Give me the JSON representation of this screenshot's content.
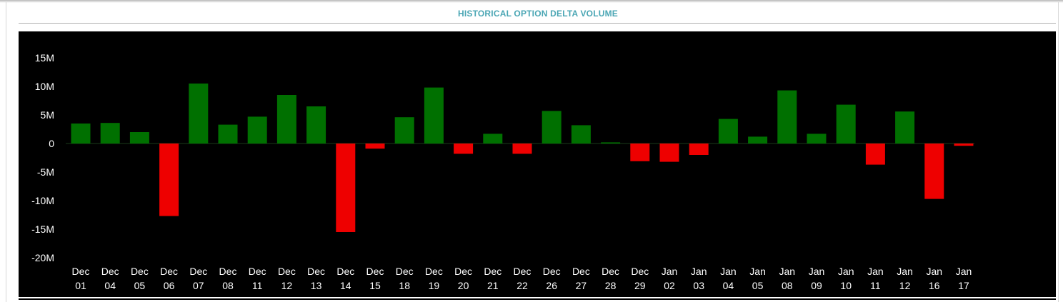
{
  "panel": {
    "title": "HISTORICAL OPTION DELTA VOLUME"
  },
  "colors": {
    "background": "#000000",
    "positive": "#007000",
    "negative": "#ee0000",
    "axis_text": "#ffffff",
    "title": "#4aa6b4"
  },
  "chart_data": {
    "type": "bar",
    "title": "HISTORICAL OPTION DELTA VOLUME",
    "xlabel": "",
    "ylabel": "",
    "ylim": [
      -20000000,
      15000000
    ],
    "y_ticks": [
      {
        "value": 15000000,
        "label": "15M"
      },
      {
        "value": 10000000,
        "label": "10M"
      },
      {
        "value": 5000000,
        "label": "5M"
      },
      {
        "value": 0,
        "label": "0"
      },
      {
        "value": -5000000,
        "label": "-5M"
      },
      {
        "value": -10000000,
        "label": "-10M"
      },
      {
        "value": -15000000,
        "label": "-15M"
      },
      {
        "value": -20000000,
        "label": "-20M"
      }
    ],
    "grid": false,
    "legend": "none",
    "categories": [
      [
        "Dec",
        "01"
      ],
      [
        "Dec",
        "04"
      ],
      [
        "Dec",
        "05"
      ],
      [
        "Dec",
        "06"
      ],
      [
        "Dec",
        "07"
      ],
      [
        "Dec",
        "08"
      ],
      [
        "Dec",
        "11"
      ],
      [
        "Dec",
        "12"
      ],
      [
        "Dec",
        "13"
      ],
      [
        "Dec",
        "14"
      ],
      [
        "Dec",
        "15"
      ],
      [
        "Dec",
        "18"
      ],
      [
        "Dec",
        "19"
      ],
      [
        "Dec",
        "20"
      ],
      [
        "Dec",
        "21"
      ],
      [
        "Dec",
        "22"
      ],
      [
        "Dec",
        "26"
      ],
      [
        "Dec",
        "27"
      ],
      [
        "Dec",
        "28"
      ],
      [
        "Dec",
        "29"
      ],
      [
        "Jan",
        "02"
      ],
      [
        "Jan",
        "03"
      ],
      [
        "Jan",
        "04"
      ],
      [
        "Jan",
        "05"
      ],
      [
        "Jan",
        "08"
      ],
      [
        "Jan",
        "09"
      ],
      [
        "Jan",
        "10"
      ],
      [
        "Jan",
        "11"
      ],
      [
        "Jan",
        "12"
      ],
      [
        "Jan",
        "16"
      ],
      [
        "Jan",
        "17"
      ]
    ],
    "values": [
      3500000,
      3600000,
      2000000,
      -12700000,
      10500000,
      3300000,
      4700000,
      8500000,
      6500000,
      -15500000,
      -900000,
      4600000,
      9800000,
      -1800000,
      1700000,
      -1800000,
      5700000,
      3200000,
      200000,
      -3100000,
      -3200000,
      -2000000,
      4300000,
      1200000,
      9300000,
      1700000,
      6800000,
      -3700000,
      5600000,
      -9700000,
      -400000
    ]
  }
}
